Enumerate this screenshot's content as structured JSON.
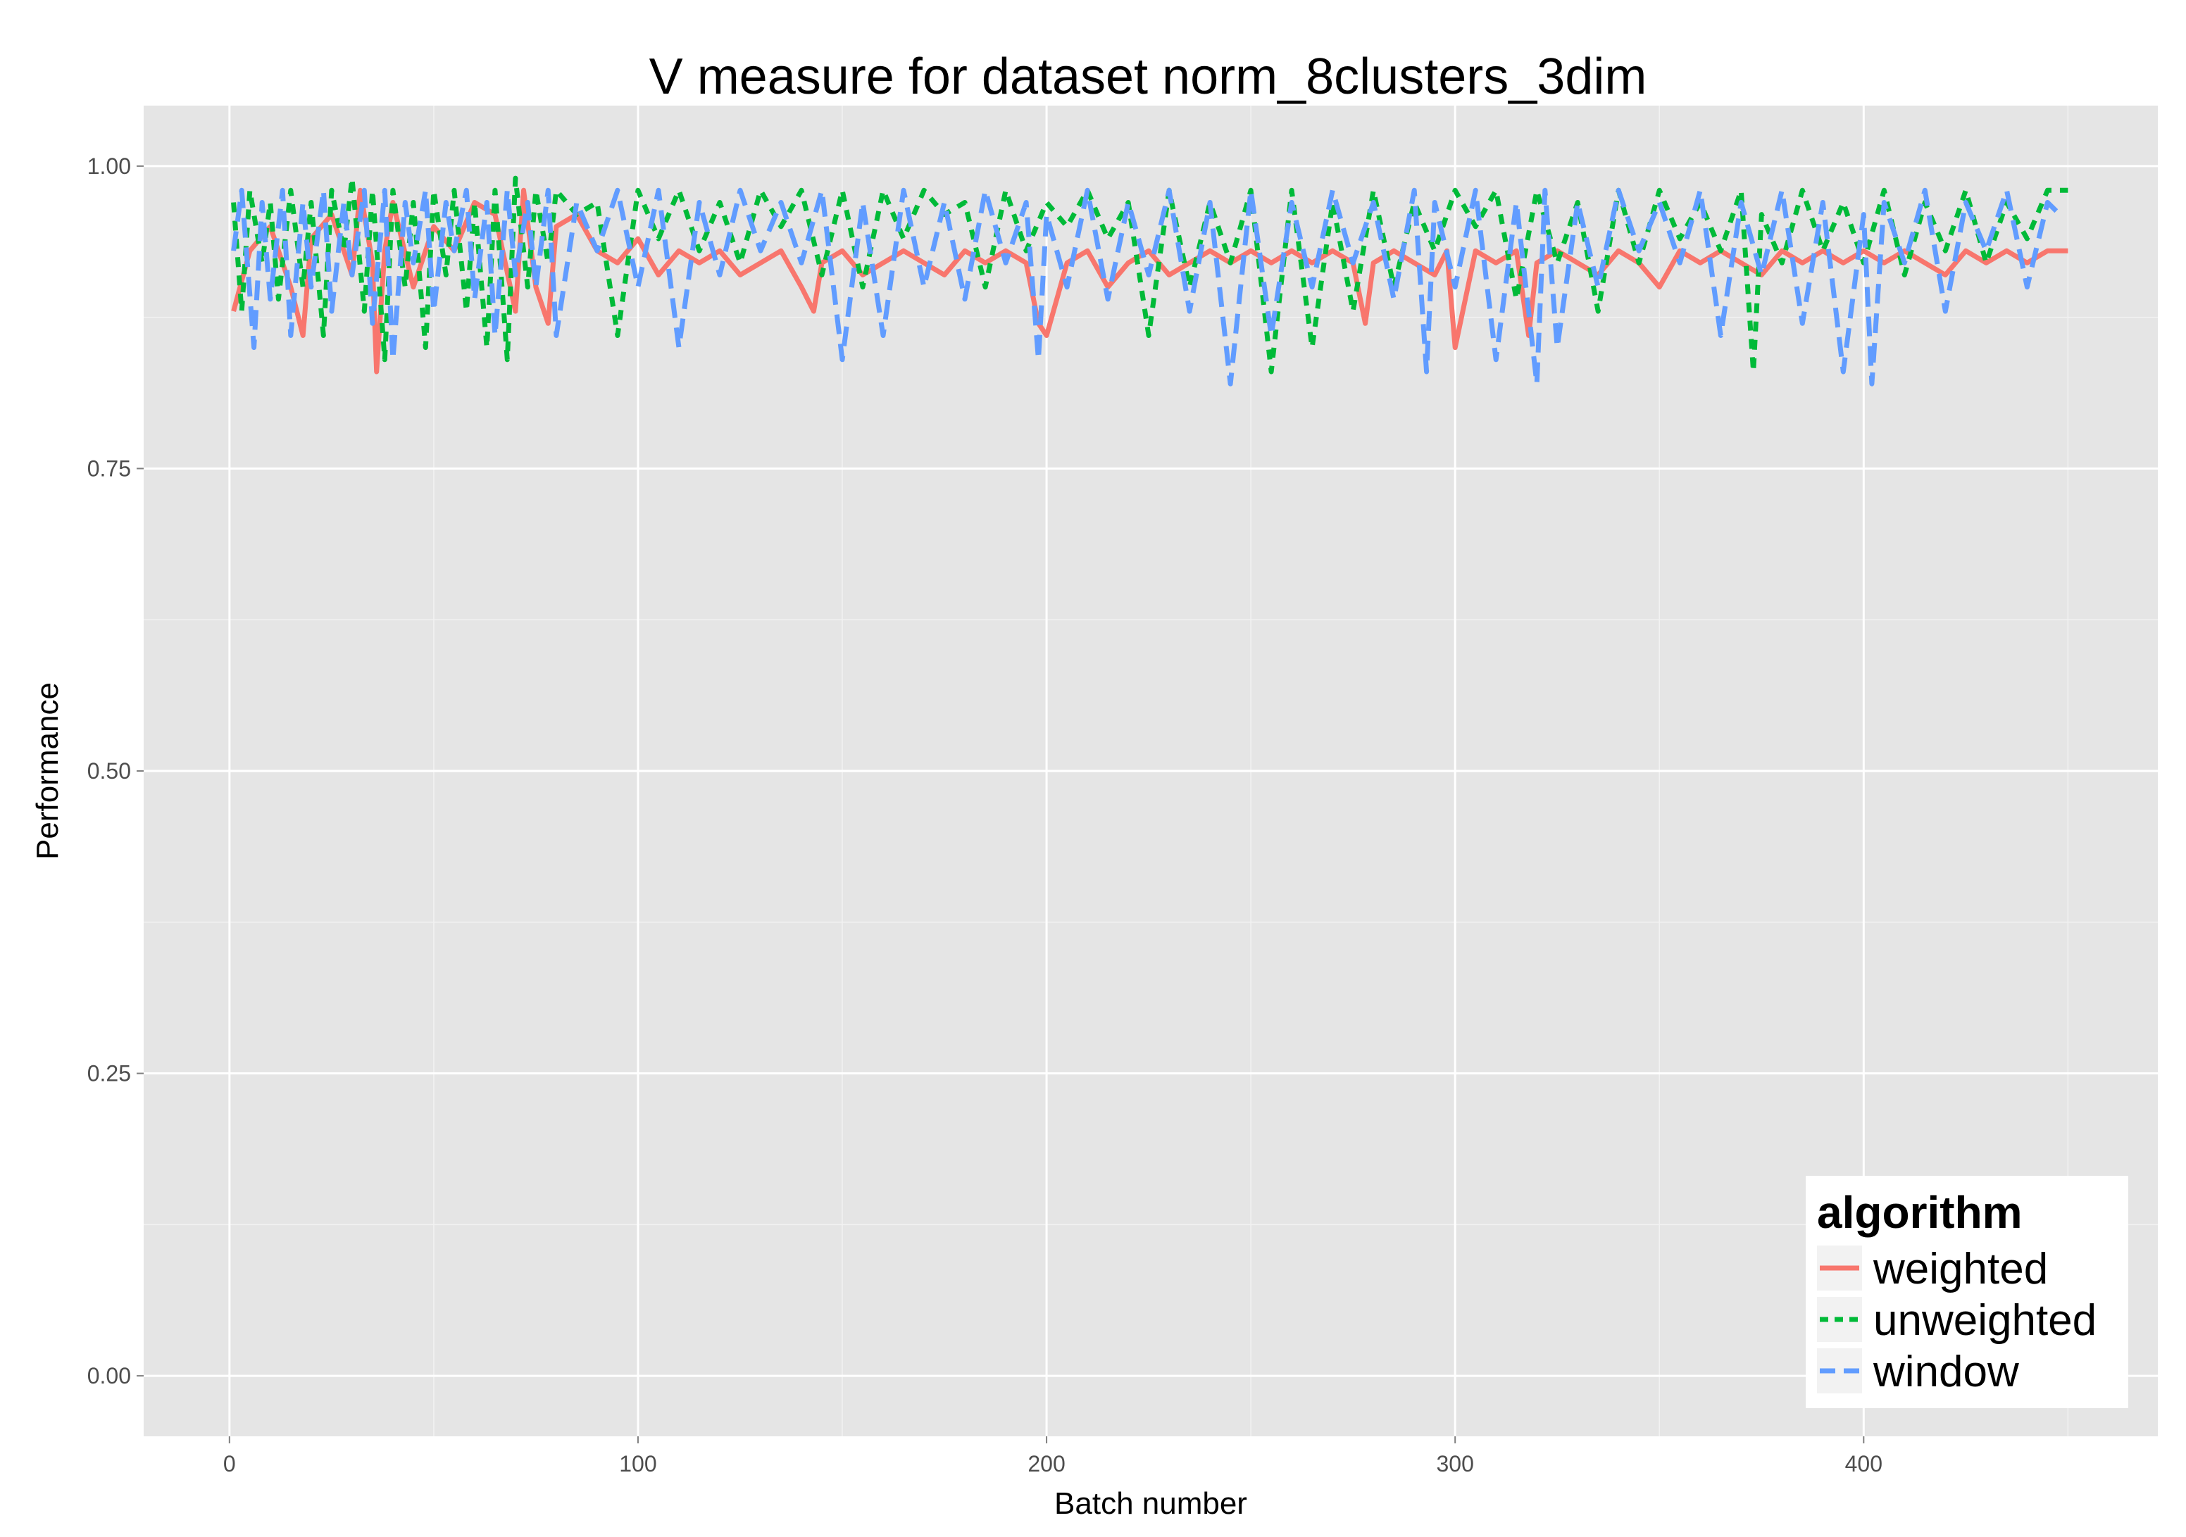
{
  "chart_data": {
    "type": "line",
    "title": "V measure for dataset norm_8clusters_3dim",
    "xlabel": "Batch number",
    "ylabel": "Performance",
    "xlim": [
      -21,
      472
    ],
    "ylim": [
      -0.05,
      1.05
    ],
    "x_ticks": [
      0,
      100,
      200,
      300,
      400
    ],
    "x_tick_labels": [
      "0",
      "100",
      "200",
      "300",
      "400"
    ],
    "y_ticks": [
      0.0,
      0.25,
      0.5,
      0.75,
      1.0
    ],
    "y_tick_labels": [
      "0.00",
      "0.25",
      "0.50",
      "0.75",
      "1.00"
    ],
    "grid": true,
    "background": "#e5e5e5",
    "legend": {
      "title": "algorithm",
      "position": "bottom-right"
    },
    "series": [
      {
        "name": "weighted",
        "color": "#f8766d",
        "linestyle": "solid",
        "x": [
          1,
          5,
          10,
          15,
          18,
          20,
          25,
          30,
          32,
          35,
          36,
          38,
          40,
          45,
          50,
          55,
          60,
          65,
          70,
          72,
          75,
          78,
          80,
          85,
          90,
          95,
          100,
          105,
          110,
          115,
          120,
          125,
          130,
          135,
          140,
          143,
          145,
          150,
          155,
          160,
          165,
          170,
          175,
          180,
          185,
          190,
          195,
          198,
          200,
          205,
          210,
          215,
          220,
          225,
          230,
          235,
          240,
          245,
          250,
          255,
          260,
          265,
          270,
          275,
          278,
          280,
          285,
          290,
          295,
          298,
          300,
          305,
          310,
          315,
          318,
          320,
          325,
          330,
          335,
          340,
          345,
          350,
          355,
          360,
          365,
          370,
          375,
          380,
          385,
          390,
          395,
          400,
          405,
          410,
          415,
          420,
          425,
          430,
          435,
          440,
          445,
          450
        ],
        "y": [
          0.88,
          0.93,
          0.95,
          0.9,
          0.86,
          0.94,
          0.96,
          0.91,
          0.98,
          0.92,
          0.83,
          0.93,
          0.97,
          0.9,
          0.95,
          0.93,
          0.97,
          0.96,
          0.88,
          0.98,
          0.9,
          0.87,
          0.95,
          0.96,
          0.93,
          0.92,
          0.94,
          0.91,
          0.93,
          0.92,
          0.93,
          0.91,
          0.92,
          0.93,
          0.9,
          0.88,
          0.92,
          0.93,
          0.91,
          0.92,
          0.93,
          0.92,
          0.91,
          0.93,
          0.92,
          0.93,
          0.92,
          0.87,
          0.86,
          0.92,
          0.93,
          0.9,
          0.92,
          0.93,
          0.91,
          0.92,
          0.93,
          0.92,
          0.93,
          0.92,
          0.93,
          0.92,
          0.93,
          0.92,
          0.87,
          0.92,
          0.93,
          0.92,
          0.91,
          0.93,
          0.85,
          0.93,
          0.92,
          0.93,
          0.86,
          0.92,
          0.93,
          0.92,
          0.91,
          0.93,
          0.92,
          0.9,
          0.93,
          0.92,
          0.93,
          0.92,
          0.91,
          0.93,
          0.92,
          0.93,
          0.92,
          0.93,
          0.92,
          0.93,
          0.92,
          0.91,
          0.93,
          0.92,
          0.93,
          0.92,
          0.93,
          0.93
        ]
      },
      {
        "name": "unweighted",
        "color": "#00ba38",
        "linestyle": "dashed",
        "x": [
          1,
          3,
          5,
          8,
          10,
          12,
          15,
          18,
          20,
          23,
          25,
          28,
          30,
          33,
          35,
          38,
          40,
          43,
          45,
          48,
          50,
          53,
          55,
          58,
          60,
          63,
          65,
          68,
          70,
          73,
          75,
          78,
          80,
          85,
          90,
          95,
          100,
          105,
          110,
          115,
          120,
          125,
          130,
          135,
          140,
          145,
          150,
          155,
          160,
          165,
          170,
          175,
          180,
          185,
          190,
          195,
          200,
          205,
          210,
          215,
          220,
          225,
          230,
          235,
          240,
          245,
          250,
          255,
          260,
          265,
          270,
          275,
          280,
          285,
          290,
          295,
          300,
          305,
          310,
          315,
          320,
          325,
          330,
          335,
          340,
          345,
          350,
          355,
          360,
          365,
          370,
          373,
          375,
          380,
          385,
          390,
          395,
          400,
          405,
          410,
          415,
          420,
          425,
          430,
          435,
          440,
          445,
          450
        ],
        "y": [
          0.97,
          0.88,
          0.98,
          0.92,
          0.97,
          0.89,
          0.98,
          0.9,
          0.97,
          0.86,
          0.98,
          0.93,
          0.99,
          0.88,
          0.98,
          0.84,
          0.98,
          0.9,
          0.97,
          0.85,
          0.98,
          0.91,
          0.98,
          0.88,
          0.97,
          0.85,
          0.98,
          0.84,
          0.99,
          0.9,
          0.98,
          0.92,
          0.98,
          0.96,
          0.97,
          0.86,
          0.98,
          0.94,
          0.98,
          0.93,
          0.97,
          0.92,
          0.98,
          0.95,
          0.98,
          0.91,
          0.98,
          0.9,
          0.98,
          0.94,
          0.98,
          0.96,
          0.97,
          0.9,
          0.98,
          0.93,
          0.97,
          0.95,
          0.98,
          0.94,
          0.97,
          0.86,
          0.98,
          0.9,
          0.97,
          0.92,
          0.98,
          0.83,
          0.98,
          0.85,
          0.97,
          0.88,
          0.98,
          0.9,
          0.97,
          0.93,
          0.98,
          0.95,
          0.98,
          0.89,
          0.98,
          0.92,
          0.97,
          0.88,
          0.98,
          0.92,
          0.98,
          0.94,
          0.97,
          0.93,
          0.98,
          0.83,
          0.96,
          0.92,
          0.98,
          0.93,
          0.97,
          0.92,
          0.98,
          0.91,
          0.97,
          0.93,
          0.98,
          0.92,
          0.97,
          0.94,
          0.98,
          0.98
        ]
      },
      {
        "name": "window",
        "color": "#619cff",
        "linestyle": "longdash",
        "x": [
          1,
          3,
          6,
          8,
          10,
          13,
          15,
          18,
          20,
          23,
          25,
          28,
          30,
          33,
          35,
          38,
          40,
          43,
          45,
          48,
          50,
          53,
          55,
          58,
          60,
          63,
          65,
          68,
          70,
          73,
          75,
          78,
          80,
          85,
          90,
          95,
          100,
          105,
          110,
          115,
          120,
          125,
          130,
          135,
          140,
          145,
          150,
          155,
          160,
          165,
          170,
          175,
          180,
          185,
          190,
          195,
          198,
          200,
          205,
          210,
          215,
          220,
          225,
          230,
          235,
          240,
          245,
          250,
          255,
          260,
          265,
          270,
          275,
          280,
          285,
          290,
          293,
          295,
          300,
          305,
          310,
          315,
          320,
          322,
          325,
          330,
          335,
          340,
          345,
          350,
          355,
          360,
          365,
          370,
          375,
          380,
          385,
          390,
          395,
          400,
          402,
          405,
          410,
          415,
          420,
          425,
          430,
          435,
          440,
          445,
          448
        ],
        "y": [
          0.93,
          0.98,
          0.85,
          0.97,
          0.89,
          0.98,
          0.86,
          0.97,
          0.9,
          0.98,
          0.88,
          0.97,
          0.91,
          0.98,
          0.87,
          0.98,
          0.84,
          0.97,
          0.92,
          0.98,
          0.88,
          0.97,
          0.93,
          0.98,
          0.89,
          0.97,
          0.86,
          0.98,
          0.91,
          0.97,
          0.9,
          0.98,
          0.86,
          0.97,
          0.93,
          0.98,
          0.9,
          0.98,
          0.85,
          0.97,
          0.91,
          0.98,
          0.93,
          0.97,
          0.92,
          0.98,
          0.84,
          0.97,
          0.86,
          0.98,
          0.9,
          0.97,
          0.89,
          0.98,
          0.92,
          0.97,
          0.84,
          0.96,
          0.9,
          0.98,
          0.89,
          0.97,
          0.91,
          0.98,
          0.88,
          0.97,
          0.82,
          0.98,
          0.86,
          0.97,
          0.9,
          0.98,
          0.92,
          0.97,
          0.89,
          0.98,
          0.83,
          0.97,
          0.9,
          0.98,
          0.84,
          0.97,
          0.82,
          0.98,
          0.85,
          0.97,
          0.9,
          0.98,
          0.93,
          0.97,
          0.92,
          0.98,
          0.86,
          0.97,
          0.91,
          0.98,
          0.87,
          0.97,
          0.83,
          0.96,
          0.82,
          0.97,
          0.92,
          0.98,
          0.88,
          0.97,
          0.93,
          0.98,
          0.9,
          0.97,
          0.96
        ]
      }
    ]
  }
}
